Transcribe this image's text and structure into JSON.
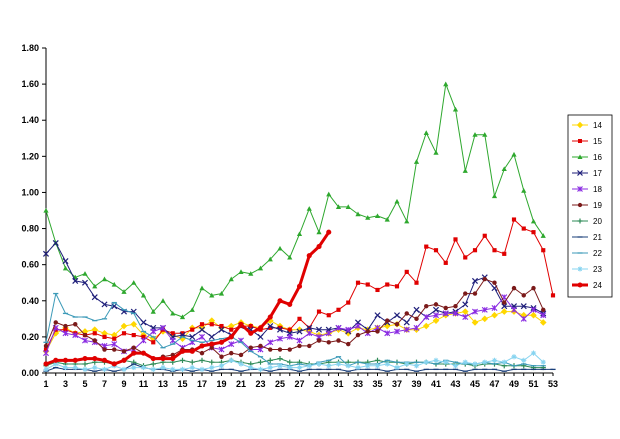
{
  "chart_data": {
    "type": "line",
    "title": "",
    "xlabel": "",
    "ylabel": "",
    "xlim": [
      1,
      53
    ],
    "ylim": [
      0,
      1.8
    ],
    "y_ticks": [
      "0.00",
      "0.20",
      "0.40",
      "0.60",
      "0.80",
      "1.00",
      "1.20",
      "1.40",
      "1.60",
      "1.80"
    ],
    "x_ticks": [
      "1",
      "3",
      "5",
      "7",
      "9",
      "11",
      "13",
      "15",
      "17",
      "19",
      "21",
      "23",
      "25",
      "27",
      "29",
      "31",
      "33",
      "35",
      "37",
      "39",
      "41",
      "43",
      "45",
      "47",
      "49",
      "51",
      "53"
    ],
    "grid": "none",
    "legend_position": "right",
    "series": [
      {
        "name": "14",
        "color": "#ffd700",
        "marker": "diamond",
        "width": 1,
        "values": [
          0.12,
          0.22,
          0.25,
          0.22,
          0.23,
          0.24,
          0.22,
          0.21,
          0.26,
          0.27,
          0.21,
          0.19,
          0.23,
          0.21,
          0.19,
          0.25,
          0.25,
          0.29,
          0.25,
          0.26,
          0.28,
          0.26,
          0.25,
          0.29,
          0.26,
          0.24,
          0.24,
          0.23,
          0.21,
          0.22,
          0.24,
          0.22,
          0.25,
          0.24,
          0.25,
          0.26,
          0.27,
          0.24,
          0.24,
          0.26,
          0.29,
          0.32,
          0.33,
          0.34,
          0.28,
          0.3,
          0.32,
          0.34,
          0.34,
          0.32,
          0.32,
          0.28,
          null
        ]
      },
      {
        "name": "15",
        "color": "#e00000",
        "marker": "square",
        "width": 1,
        "values": [
          0.13,
          0.24,
          0.24,
          0.22,
          0.21,
          0.22,
          0.2,
          0.19,
          0.22,
          0.21,
          0.2,
          0.17,
          0.24,
          0.22,
          0.22,
          0.24,
          0.27,
          0.27,
          0.26,
          0.24,
          0.26,
          0.26,
          0.24,
          0.25,
          0.25,
          0.24,
          0.3,
          0.25,
          0.34,
          0.32,
          0.35,
          0.39,
          0.5,
          0.49,
          0.46,
          0.49,
          0.48,
          0.56,
          0.5,
          0.7,
          0.68,
          0.61,
          0.74,
          0.64,
          0.68,
          0.76,
          0.68,
          0.66,
          0.85,
          0.8,
          0.78,
          0.68,
          0.43
        ]
      },
      {
        "name": "16",
        "color": "#2ea82e",
        "marker": "triangle",
        "width": 1,
        "values": [
          0.9,
          0.72,
          0.58,
          0.53,
          0.55,
          0.48,
          0.52,
          0.49,
          0.45,
          0.5,
          0.43,
          0.34,
          0.4,
          0.33,
          0.31,
          0.35,
          0.47,
          0.43,
          0.44,
          0.52,
          0.56,
          0.55,
          0.58,
          0.63,
          0.69,
          0.64,
          0.77,
          0.91,
          0.78,
          0.99,
          0.92,
          0.92,
          0.88,
          0.86,
          0.87,
          0.85,
          0.95,
          0.84,
          1.17,
          1.33,
          1.22,
          1.6,
          1.46,
          1.12,
          1.32,
          1.32,
          0.98,
          1.13,
          1.21,
          1.01,
          0.84,
          0.76,
          null
        ]
      },
      {
        "name": "17",
        "color": "#1f1f7a",
        "marker": "x",
        "width": 1,
        "values": [
          0.66,
          0.72,
          0.62,
          0.51,
          0.5,
          0.42,
          0.38,
          0.37,
          0.34,
          0.34,
          0.28,
          0.25,
          0.25,
          0.2,
          0.21,
          0.2,
          0.24,
          0.2,
          0.24,
          0.21,
          0.26,
          0.24,
          0.2,
          0.26,
          0.24,
          0.22,
          0.23,
          0.25,
          0.24,
          0.24,
          0.25,
          0.23,
          0.28,
          0.24,
          0.32,
          0.28,
          0.32,
          0.28,
          0.35,
          0.31,
          0.35,
          0.33,
          0.34,
          0.38,
          0.51,
          0.53,
          0.47,
          0.37,
          0.37,
          0.37,
          0.36,
          0.33,
          null
        ]
      },
      {
        "name": "18",
        "color": "#8a2be2",
        "marker": "asterisk",
        "width": 1,
        "values": [
          0.11,
          0.25,
          0.22,
          0.21,
          0.18,
          0.17,
          0.15,
          0.16,
          0.12,
          0.13,
          0.18,
          0.23,
          0.25,
          0.18,
          0.14,
          0.17,
          0.2,
          0.14,
          0.13,
          0.16,
          0.18,
          0.13,
          0.13,
          0.17,
          0.19,
          0.2,
          0.18,
          0.22,
          0.2,
          0.22,
          0.25,
          0.24,
          0.26,
          0.22,
          0.25,
          0.22,
          0.23,
          0.24,
          0.25,
          0.31,
          0.32,
          0.33,
          0.33,
          0.31,
          0.34,
          0.35,
          0.36,
          0.42,
          0.35,
          0.3,
          0.35,
          0.32,
          null
        ]
      },
      {
        "name": "19",
        "color": "#7b1a1a",
        "marker": "circle",
        "width": 1,
        "values": [
          0.15,
          0.28,
          0.26,
          0.27,
          0.21,
          0.18,
          0.13,
          0.13,
          0.12,
          0.14,
          0.11,
          0.08,
          0.09,
          0.1,
          0.13,
          0.13,
          0.11,
          0.14,
          0.09,
          0.11,
          0.1,
          0.14,
          0.15,
          0.13,
          0.13,
          0.13,
          0.15,
          0.15,
          0.18,
          0.17,
          0.18,
          0.16,
          0.21,
          0.23,
          0.23,
          0.29,
          0.27,
          0.33,
          0.3,
          0.37,
          0.38,
          0.36,
          0.37,
          0.44,
          0.44,
          0.52,
          0.5,
          0.39,
          0.47,
          0.43,
          0.47,
          0.35,
          null
        ]
      },
      {
        "name": "20",
        "color": "#2e8b57",
        "marker": "plus",
        "width": 1,
        "values": [
          0.04,
          0.06,
          0.05,
          0.05,
          0.05,
          0.06,
          0.06,
          0.05,
          0.07,
          0.06,
          0.04,
          0.05,
          0.06,
          0.06,
          0.07,
          0.06,
          0.07,
          0.06,
          0.06,
          0.07,
          0.06,
          0.05,
          0.06,
          0.07,
          0.08,
          0.06,
          0.06,
          0.05,
          0.05,
          0.06,
          0.06,
          0.06,
          0.06,
          0.06,
          0.07,
          0.06,
          0.06,
          0.05,
          0.06,
          0.06,
          0.05,
          0.05,
          0.05,
          0.05,
          0.04,
          0.05,
          0.05,
          0.04,
          0.04,
          0.04,
          0.03,
          0.03,
          null
        ]
      },
      {
        "name": "21",
        "color": "#1a3f7a",
        "marker": "dash",
        "width": 1,
        "values": [
          0.01,
          0.03,
          0.02,
          0.02,
          0.02,
          0.01,
          0.02,
          0.01,
          0.02,
          0.05,
          0.03,
          0.02,
          0.02,
          0.01,
          0.02,
          0.01,
          0.02,
          0.01,
          0.02,
          0.02,
          0.01,
          0.02,
          0.02,
          0.01,
          0.02,
          0.02,
          0.01,
          0.02,
          0.02,
          0.02,
          0.02,
          0.01,
          0.02,
          0.02,
          0.02,
          0.01,
          0.02,
          0.02,
          0.01,
          0.02,
          0.02,
          0.02,
          0.02,
          0.01,
          0.02,
          0.02,
          0.02,
          0.01,
          0.02,
          0.02,
          0.02,
          0.02,
          0.02
        ]
      },
      {
        "name": "22",
        "color": "#3c9ab8",
        "marker": "dash",
        "width": 1,
        "values": [
          0.17,
          0.44,
          0.33,
          0.31,
          0.31,
          0.29,
          0.3,
          0.39,
          0.35,
          0.33,
          0.23,
          0.2,
          0.14,
          0.16,
          0.2,
          0.18,
          0.17,
          0.18,
          0.19,
          0.2,
          0.17,
          0.12,
          0.09,
          0.05,
          0.05,
          0.04,
          0.05,
          0.04,
          0.06,
          0.07,
          0.09,
          0.04,
          0.06,
          0.05,
          0.05,
          0.07,
          0.06,
          0.06,
          0.06,
          0.06,
          0.05,
          0.07,
          0.06,
          0.05,
          0.05,
          0.06,
          0.05,
          0.06,
          0.04,
          0.05,
          0.04,
          0.04,
          null
        ]
      },
      {
        "name": "23",
        "color": "#87d4f0",
        "marker": "star",
        "width": 1,
        "values": [
          0.02,
          0.05,
          0.03,
          0.03,
          0.02,
          0.03,
          0.02,
          0.04,
          0.02,
          0.03,
          0.03,
          0.02,
          0.03,
          0.02,
          0.02,
          0.03,
          0.02,
          0.03,
          0.04,
          0.07,
          0.05,
          0.03,
          0.02,
          0.03,
          0.04,
          0.03,
          0.03,
          0.04,
          0.05,
          0.04,
          0.05,
          0.04,
          0.03,
          0.04,
          0.04,
          0.05,
          0.03,
          0.05,
          0.04,
          0.06,
          0.07,
          0.06,
          0.04,
          0.06,
          0.05,
          0.06,
          0.07,
          0.06,
          0.09,
          0.07,
          0.11,
          0.06,
          null
        ]
      },
      {
        "name": "24",
        "color": "#e00000",
        "marker": "circle",
        "width": 3,
        "values": [
          0.05,
          0.07,
          0.07,
          0.07,
          0.08,
          0.08,
          0.07,
          0.05,
          0.07,
          0.11,
          0.11,
          0.08,
          0.08,
          0.08,
          0.12,
          0.12,
          0.15,
          0.16,
          0.17,
          0.2,
          0.27,
          0.22,
          0.25,
          0.31,
          0.4,
          0.38,
          0.48,
          0.65,
          0.7,
          0.78,
          null,
          null,
          null,
          null,
          null,
          null,
          null,
          null,
          null,
          null,
          null,
          null,
          null,
          null,
          null,
          null,
          null,
          null,
          null,
          null,
          null,
          null,
          null
        ]
      }
    ]
  }
}
